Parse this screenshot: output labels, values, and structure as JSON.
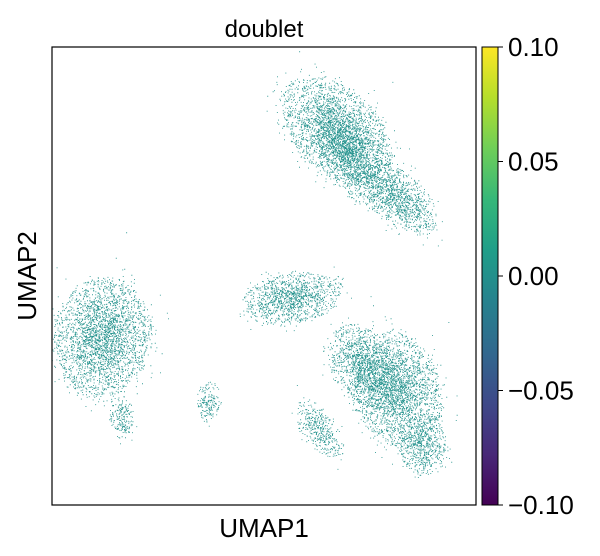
{
  "chart_data": {
    "type": "scatter",
    "title": "doublet",
    "xlabel": "UMAP1",
    "ylabel": "UMAP2",
    "xticks": [],
    "yticks": [],
    "grid": false,
    "point_color": "#21918c",
    "colorbar": {
      "colormap": "viridis",
      "range": [
        -0.1,
        0.1
      ],
      "ticks": [
        {
          "value": 0.1,
          "label": "0.10"
        },
        {
          "value": 0.05,
          "label": "0.05"
        },
        {
          "value": 0.0,
          "label": "0.00"
        },
        {
          "value": -0.05,
          "label": "−0.05"
        },
        {
          "value": -0.1,
          "label": "−0.10"
        }
      ],
      "stops": [
        "#440154",
        "#482878",
        "#3e4989",
        "#31688e",
        "#26828e",
        "#1f9e89",
        "#35b779",
        "#6ece58",
        "#b5de2b",
        "#fde725"
      ]
    },
    "series": [
      {
        "values_all": 0.0,
        "clusters": [
          {
            "cx": 5.2,
            "cy": 8.2,
            "rx": 1.9,
            "ry": 1.0,
            "rot": -20,
            "density": 1.0
          },
          {
            "cx": 6.0,
            "cy": 7.4,
            "rx": 1.5,
            "ry": 0.8,
            "rot": -35,
            "density": 0.7
          },
          {
            "cx": 7.6,
            "cy": 6.5,
            "rx": 1.3,
            "ry": 0.6,
            "rot": -25,
            "density": 0.9
          },
          {
            "cx": 5.7,
            "cy": 7.6,
            "rx": 0.6,
            "ry": 0.5,
            "rot": 0,
            "density": 0.4
          },
          {
            "cx": 3.5,
            "cy": 4.0,
            "rx": 1.6,
            "ry": 0.55,
            "rot": 5,
            "density": 1.0
          },
          {
            "cx": 5.4,
            "cy": 4.4,
            "rx": 0.5,
            "ry": 0.12,
            "rot": -55,
            "density": 0.15
          },
          {
            "cx": -3.6,
            "cy": 3.0,
            "rx": 1.6,
            "ry": 1.3,
            "rot": 10,
            "density": 1.0
          },
          {
            "cx": -2.9,
            "cy": 1.0,
            "rx": 0.4,
            "ry": 0.5,
            "rot": 0,
            "density": 0.7
          },
          {
            "cx": 0.4,
            "cy": 1.4,
            "rx": 0.4,
            "ry": 0.45,
            "rot": 0,
            "density": 0.7
          },
          {
            "cx": 6.2,
            "cy": 2.3,
            "rx": 1.2,
            "ry": 0.8,
            "rot": -30,
            "density": 0.9
          },
          {
            "cx": 7.5,
            "cy": 1.7,
            "rx": 1.5,
            "ry": 1.2,
            "rot": -20,
            "density": 1.0
          },
          {
            "cx": 8.5,
            "cy": 0.3,
            "rx": 0.8,
            "ry": 0.7,
            "rot": 0,
            "density": 0.8
          },
          {
            "cx": 4.6,
            "cy": 0.7,
            "rx": 0.9,
            "ry": 0.45,
            "rot": -35,
            "density": 0.7
          }
        ]
      }
    ],
    "xlim": [
      -5.5,
      10.5
    ],
    "ylim": [
      -1.2,
      10.3
    ]
  }
}
